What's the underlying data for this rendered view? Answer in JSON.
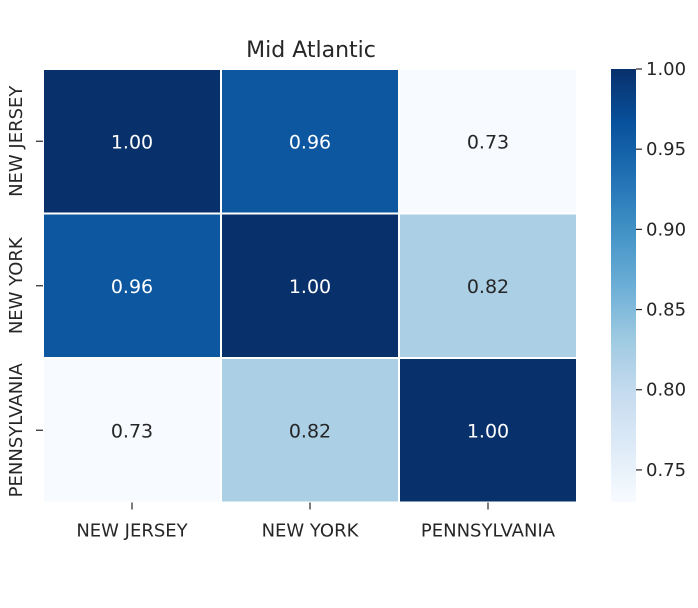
{
  "chart_data": {
    "type": "heatmap",
    "title": "Mid Atlantic",
    "x_categories": [
      "NEW JERSEY",
      "NEW YORK",
      "PENNSYLVANIA"
    ],
    "y_categories": [
      "NEW JERSEY",
      "NEW YORK",
      "PENNSYLVANIA"
    ],
    "values": [
      [
        1.0,
        0.96,
        0.73
      ],
      [
        0.96,
        1.0,
        0.82
      ],
      [
        0.73,
        0.82,
        1.0
      ]
    ],
    "value_labels": [
      [
        "1.00",
        "0.96",
        "0.73"
      ],
      [
        "0.96",
        "1.00",
        "0.82"
      ],
      [
        "0.73",
        "0.82",
        "1.00"
      ]
    ],
    "colormap": "Blues",
    "colorbar": {
      "range": [
        0.73,
        1.0
      ],
      "ticks": [
        0.75,
        0.8,
        0.85,
        0.9,
        0.95,
        1.0
      ],
      "tick_labels": [
        "0.75",
        "0.80",
        "0.85",
        "0.90",
        "0.95",
        "1.00"
      ],
      "position": "right"
    },
    "cell_separator_color": "#ffffff",
    "xlabel": "",
    "ylabel": ""
  }
}
